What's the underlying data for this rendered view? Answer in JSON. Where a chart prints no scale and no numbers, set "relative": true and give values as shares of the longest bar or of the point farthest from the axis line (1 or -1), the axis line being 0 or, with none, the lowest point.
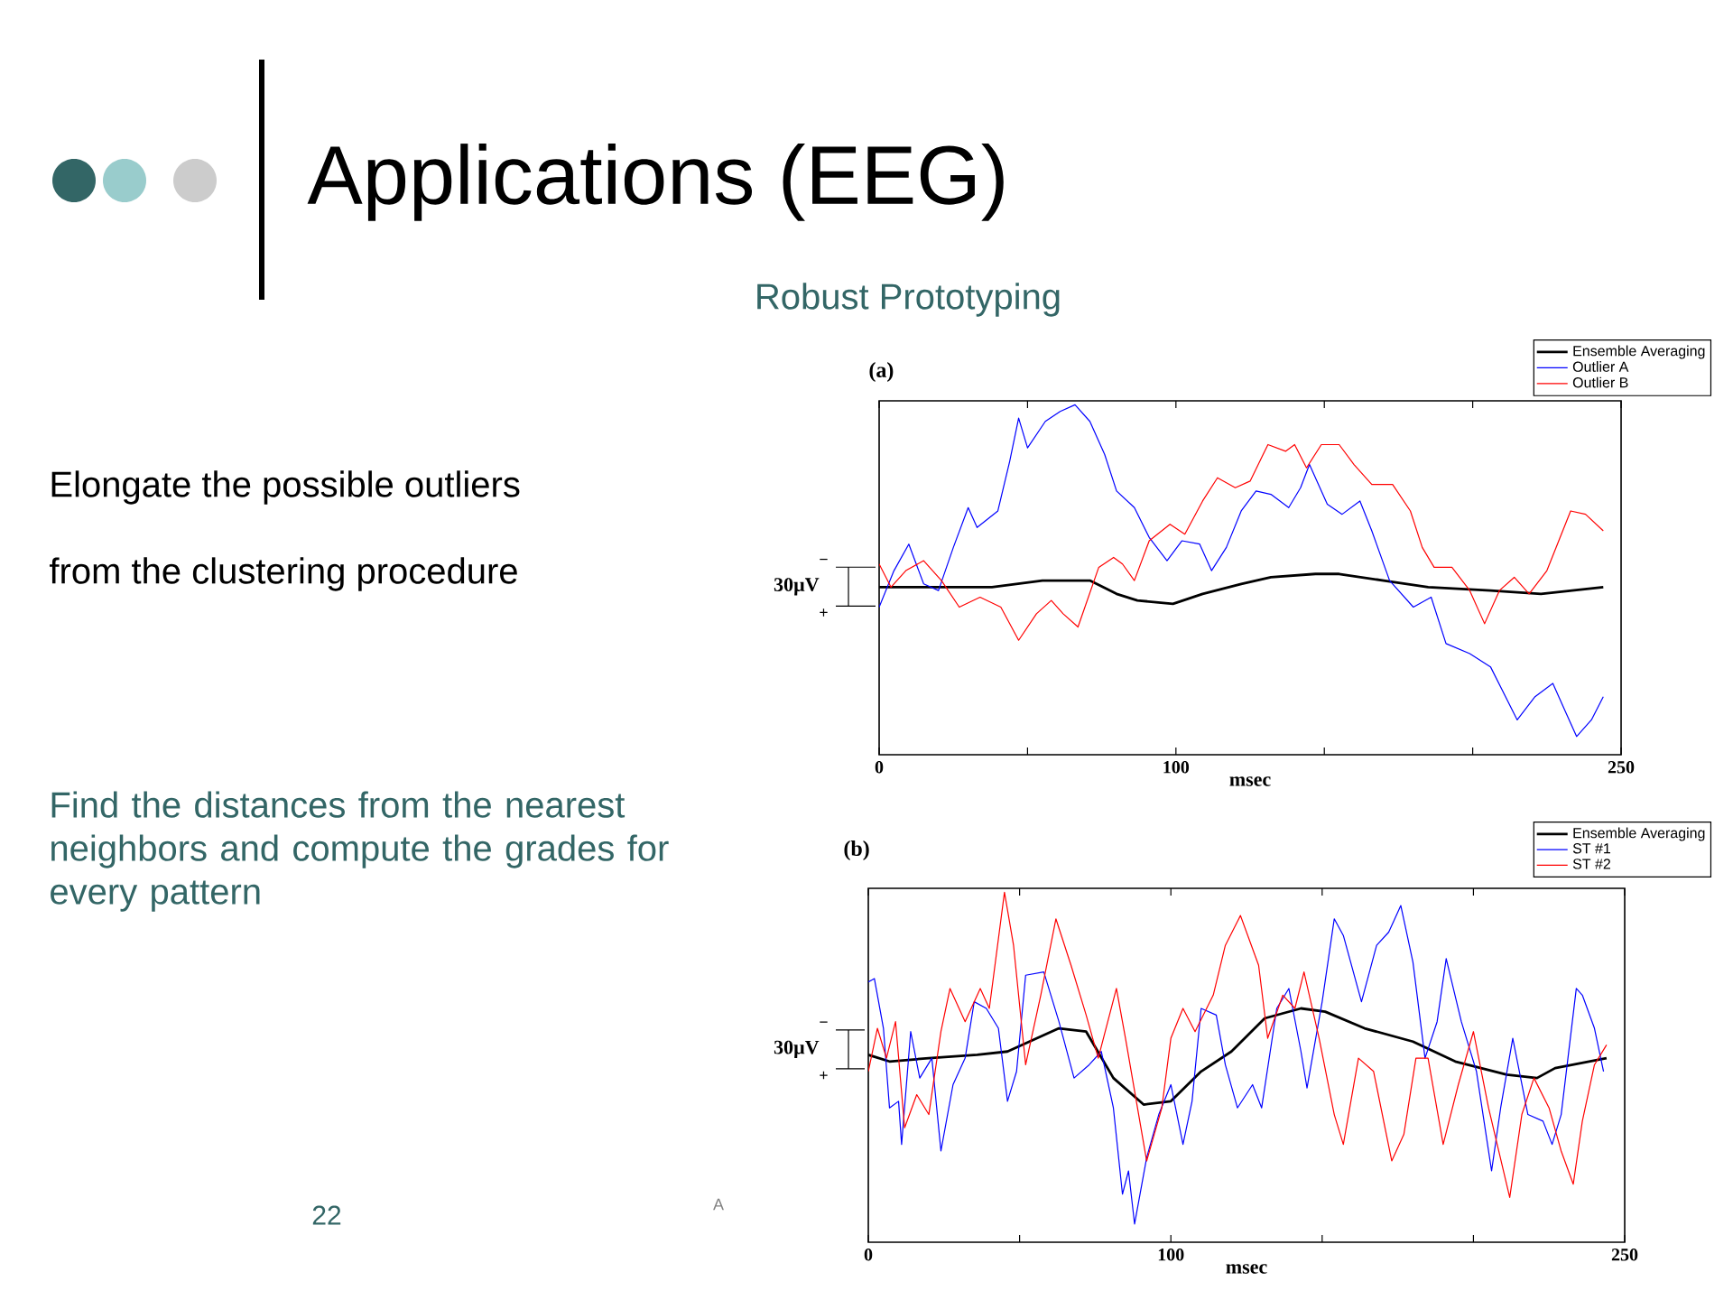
{
  "chart_data": [
    {
      "type": "other",
      "title": "Applications (EEG)",
      "subtitle": "Robust Prototyping",
      "annotations": [
        "Elongate the possible outliers",
        "from the clustering procedure",
        "Find the distances from the nearest neighbors and compute the grades for every pattern",
        "22",
        "A"
      ]
    },
    {
      "type": "line",
      "title": "(a)",
      "xlabel": "msec",
      "relative": true,
      "xlim": [
        0,
        250
      ],
      "xticks": [
        0,
        {
          "value": 50,
          "label": null
        },
        100,
        {
          "value": 150,
          "label": null
        },
        {
          "value": 200,
          "label": null
        },
        250
      ],
      "legend": "top right",
      "annotations": [
        "30µV",
        "−",
        "+"
      ],
      "series": [
        {
          "name": "Ensemble Averaging",
          "color": "#000000",
          "x": [
            0,
            17,
            38,
            55,
            71,
            80,
            87,
            99,
            109,
            122,
            132,
            147,
            155,
            170,
            185,
            206,
            223,
            244
          ],
          "values": [
            0.45,
            0.45,
            0.45,
            0.47,
            0.47,
            0.43,
            0.41,
            0.4,
            0.43,
            0.46,
            0.48,
            0.49,
            0.49,
            0.47,
            0.45,
            0.44,
            0.43,
            0.45
          ]
        },
        {
          "name": "Outlier A",
          "color": "#0000ff",
          "x": [
            0,
            5,
            10,
            15,
            20,
            25,
            30,
            33,
            40,
            44,
            47,
            50,
            56,
            61,
            66,
            71,
            76,
            80,
            86,
            91,
            97,
            102,
            108,
            112,
            117,
            122,
            127,
            132,
            138,
            142,
            145,
            151,
            156,
            162,
            166,
            172,
            180,
            186,
            191,
            199,
            206,
            215,
            221,
            227,
            231,
            235,
            240,
            244
          ],
          "values": [
            0.39,
            0.5,
            0.58,
            0.46,
            0.44,
            0.57,
            0.69,
            0.63,
            0.68,
            0.83,
            0.96,
            0.87,
            0.95,
            0.98,
            1.0,
            0.95,
            0.85,
            0.74,
            0.69,
            0.6,
            0.53,
            0.59,
            0.58,
            0.5,
            0.57,
            0.68,
            0.74,
            0.73,
            0.69,
            0.75,
            0.82,
            0.7,
            0.67,
            0.71,
            0.62,
            0.47,
            0.39,
            0.42,
            0.28,
            0.25,
            0.21,
            0.05,
            0.12,
            0.16,
            0.08,
            0.0,
            0.05,
            0.12
          ]
        },
        {
          "name": "Outlier B",
          "color": "#ff0000",
          "x": [
            0,
            4,
            9,
            15,
            21,
            27,
            34,
            41,
            47,
            53,
            58,
            62,
            67,
            74,
            79,
            82,
            86,
            91,
            98,
            103,
            109,
            114,
            120,
            125,
            131,
            137,
            140,
            144,
            149,
            155,
            160,
            166,
            173,
            179,
            183,
            187,
            193,
            199,
            204,
            209,
            214,
            219,
            225,
            229,
            233,
            238,
            244
          ],
          "values": [
            0.52,
            0.45,
            0.5,
            0.53,
            0.47,
            0.39,
            0.42,
            0.39,
            0.29,
            0.37,
            0.41,
            0.37,
            0.33,
            0.51,
            0.54,
            0.52,
            0.47,
            0.59,
            0.64,
            0.61,
            0.71,
            0.78,
            0.75,
            0.77,
            0.88,
            0.86,
            0.88,
            0.81,
            0.88,
            0.88,
            0.82,
            0.76,
            0.76,
            0.68,
            0.57,
            0.51,
            0.51,
            0.44,
            0.34,
            0.44,
            0.48,
            0.43,
            0.5,
            0.59,
            0.68,
            0.67,
            0.62
          ]
        }
      ]
    },
    {
      "type": "line",
      "title": "(b)",
      "xlabel": "msec",
      "relative": true,
      "xlim": [
        0,
        250
      ],
      "xticks": [
        0,
        {
          "value": 50,
          "label": null
        },
        100,
        {
          "value": 150,
          "label": null
        },
        {
          "value": 200,
          "label": null
        },
        250
      ],
      "legend": "top right",
      "annotations": [
        "30µV",
        "−",
        "+"
      ],
      "series": [
        {
          "name": "Ensemble Averaging",
          "color": "#000000",
          "x": [
            0,
            7,
            20,
            36,
            46,
            63,
            72,
            81,
            91,
            100,
            110,
            120,
            131,
            143,
            151,
            164,
            180,
            194,
            211,
            221,
            227,
            244
          ],
          "values": [
            0.51,
            0.49,
            0.5,
            0.51,
            0.52,
            0.59,
            0.58,
            0.44,
            0.36,
            0.37,
            0.46,
            0.52,
            0.62,
            0.65,
            0.64,
            0.59,
            0.55,
            0.49,
            0.45,
            0.44,
            0.47,
            0.5
          ]
        },
        {
          "name": "ST #1",
          "color": "#0000ff",
          "x": [
            0,
            2,
            5,
            7,
            10,
            11,
            14,
            17,
            21,
            24,
            28,
            32,
            35,
            39,
            43,
            46,
            49,
            52,
            58,
            63,
            68,
            73,
            77,
            81,
            84,
            86,
            88,
            92,
            96,
            100,
            104,
            107,
            110,
            115,
            118,
            122,
            127,
            130,
            135,
            139,
            143,
            145,
            150,
            154,
            157,
            163,
            168,
            172,
            176,
            180,
            184,
            188,
            191,
            196,
            201,
            206,
            209,
            213,
            218,
            223,
            226,
            229,
            234,
            236,
            240,
            243
          ],
          "values": [
            0.73,
            0.74,
            0.59,
            0.35,
            0.37,
            0.24,
            0.58,
            0.44,
            0.5,
            0.22,
            0.42,
            0.5,
            0.67,
            0.65,
            0.59,
            0.37,
            0.46,
            0.75,
            0.76,
            0.61,
            0.44,
            0.48,
            0.52,
            0.35,
            0.09,
            0.16,
            0.0,
            0.2,
            0.33,
            0.42,
            0.24,
            0.37,
            0.65,
            0.63,
            0.48,
            0.35,
            0.42,
            0.35,
            0.65,
            0.71,
            0.52,
            0.41,
            0.67,
            0.92,
            0.87,
            0.67,
            0.84,
            0.88,
            0.96,
            0.79,
            0.5,
            0.61,
            0.8,
            0.61,
            0.46,
            0.16,
            0.35,
            0.56,
            0.33,
            0.31,
            0.24,
            0.33,
            0.71,
            0.69,
            0.59,
            0.46
          ]
        },
        {
          "name": "ST #2",
          "color": "#ff0000",
          "x": [
            0,
            3,
            6,
            9,
            12,
            16,
            20,
            24,
            27,
            32,
            37,
            40,
            45,
            48,
            52,
            57,
            62,
            67,
            72,
            76,
            82,
            85,
            92,
            97,
            100,
            104,
            108,
            114,
            118,
            123,
            129,
            132,
            137,
            141,
            144,
            149,
            154,
            157,
            162,
            167,
            173,
            177,
            181,
            185,
            190,
            195,
            200,
            205,
            212,
            216,
            220,
            225,
            229,
            233,
            236,
            240,
            244
          ],
          "values": [
            0.46,
            0.59,
            0.5,
            0.61,
            0.29,
            0.39,
            0.33,
            0.58,
            0.71,
            0.61,
            0.71,
            0.65,
            1.0,
            0.84,
            0.48,
            0.69,
            0.92,
            0.78,
            0.63,
            0.5,
            0.71,
            0.56,
            0.19,
            0.35,
            0.56,
            0.65,
            0.58,
            0.69,
            0.84,
            0.93,
            0.78,
            0.56,
            0.69,
            0.65,
            0.76,
            0.56,
            0.33,
            0.24,
            0.5,
            0.46,
            0.19,
            0.27,
            0.5,
            0.5,
            0.24,
            0.42,
            0.58,
            0.35,
            0.08,
            0.33,
            0.44,
            0.35,
            0.22,
            0.12,
            0.31,
            0.48,
            0.54
          ]
        }
      ]
    }
  ]
}
